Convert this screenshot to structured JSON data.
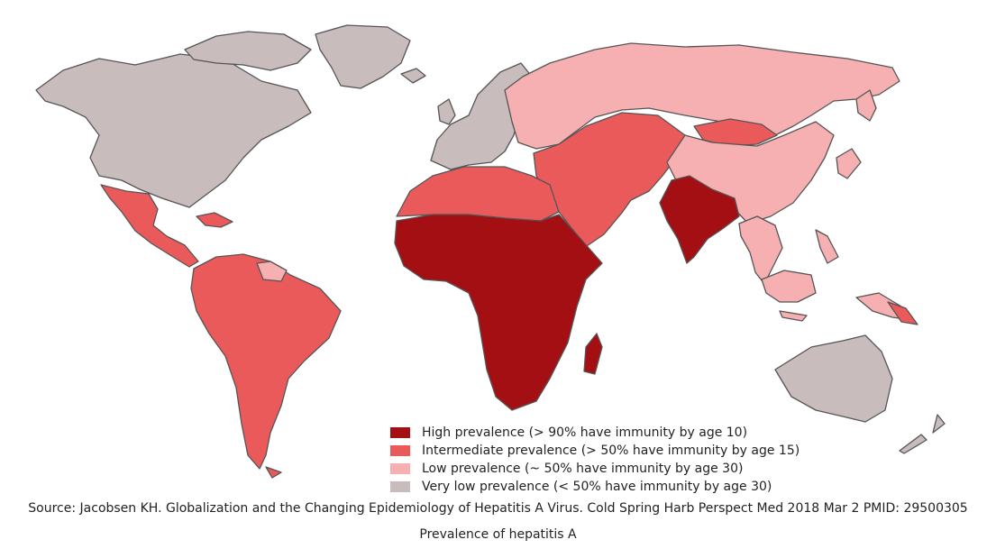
{
  "colors": {
    "high": "#a30f12",
    "intermediate": "#eb5a5b",
    "low": "#f6b0b1",
    "very_low": "#c8bcbd"
  },
  "legend": [
    {
      "key": "high",
      "label": "High prevalence (> 90% have immunity by age 10)"
    },
    {
      "key": "intermediate",
      "label": "Intermediate prevalence (> 50% have immunity by age 15)"
    },
    {
      "key": "low",
      "label": "Low prevalence (~ 50% have immunity by age 30)"
    },
    {
      "key": "very_low",
      "label": "Very low prevalence (< 50% have immunity by age 30)"
    }
  ],
  "source": "Source: Jacobsen KH. Globalization and the Changing Epidemiology of Hepatitis A Virus. Cold Spring Harb Perspect Med 2018 Mar 2 PMID: 29500305",
  "caption": "Prevalence of hepatitis A"
}
